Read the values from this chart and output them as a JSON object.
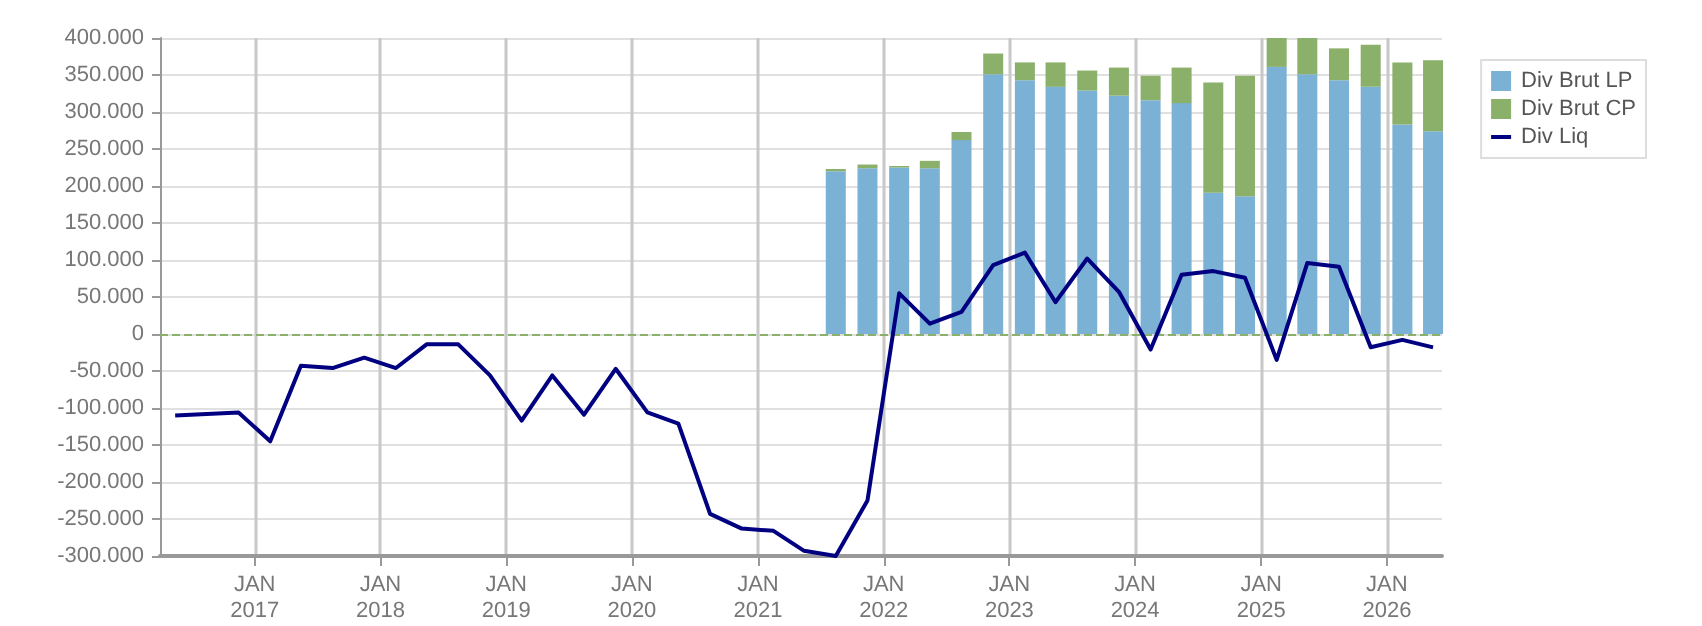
{
  "chart_data": {
    "type": "bar",
    "stacked": true,
    "grid": true,
    "legend": "right",
    "x": [
      "2016-05-15",
      "2016-08-15",
      "2016-11-15",
      "2017-02-15",
      "2017-05-15",
      "2017-08-15",
      "2017-11-15",
      "2018-02-15",
      "2018-05-15",
      "2018-08-15",
      "2018-11-15",
      "2019-02-15",
      "2019-05-15",
      "2019-08-15",
      "2019-11-15",
      "2020-02-15",
      "2020-05-15",
      "2020-08-15",
      "2020-11-15",
      "2021-02-15",
      "2021-05-15",
      "2021-08-15",
      "2021-11-15",
      "2022-02-15",
      "2022-05-15",
      "2022-08-15",
      "2022-11-15",
      "2023-02-15",
      "2023-05-15",
      "2023-08-15",
      "2023-11-15",
      "2024-02-15",
      "2024-05-15",
      "2024-08-15",
      "2024-11-15",
      "2025-02-15",
      "2025-05-15",
      "2025-08-15",
      "2025-11-15",
      "2026-02-15",
      "2026-05-15"
    ],
    "xlim": [
      "2016-04-01",
      "2026-06-10"
    ],
    "xticks": [
      {
        "value": "2017-01-01",
        "label": "JAN\n2017"
      },
      {
        "value": "2018-01-01",
        "label": "JAN\n2018"
      },
      {
        "value": "2019-01-01",
        "label": "JAN\n2019"
      },
      {
        "value": "2020-01-01",
        "label": "JAN\n2020"
      },
      {
        "value": "2021-01-01",
        "label": "JAN\n2021"
      },
      {
        "value": "2022-01-01",
        "label": "JAN\n2022"
      },
      {
        "value": "2023-01-01",
        "label": "JAN\n2023"
      },
      {
        "value": "2024-01-01",
        "label": "JAN\n2024"
      },
      {
        "value": "2025-01-01",
        "label": "JAN\n2025"
      },
      {
        "value": "2026-01-01",
        "label": "JAN\n2026"
      }
    ],
    "ylim": [
      -300000,
      400000
    ],
    "yticks": [
      {
        "value": -300000,
        "label": "-300.000"
      },
      {
        "value": -250000,
        "label": "-250.000"
      },
      {
        "value": -200000,
        "label": "-200.000"
      },
      {
        "value": -150000,
        "label": "-150.000"
      },
      {
        "value": -100000,
        "label": "-100.000"
      },
      {
        "value": -50000,
        "label": "-50.000"
      },
      {
        "value": 0,
        "label": "0"
      },
      {
        "value": 50000,
        "label": "50.000"
      },
      {
        "value": 100000,
        "label": "100.000"
      },
      {
        "value": 150000,
        "label": "150.000"
      },
      {
        "value": 200000,
        "label": "200.000"
      },
      {
        "value": 250000,
        "label": "250.000"
      },
      {
        "value": 300000,
        "label": "300.000"
      },
      {
        "value": 350000,
        "label": "350.000"
      },
      {
        "value": 400000,
        "label": "400.000"
      }
    ],
    "ref_lines": [
      {
        "axis": "y",
        "value": 0,
        "color": "#8ab06a",
        "line_style": "dashed"
      }
    ],
    "series": [
      {
        "name": "Div Brut LP",
        "color": "#7ab1d4",
        "values": [
          null,
          null,
          null,
          null,
          null,
          null,
          null,
          null,
          null,
          null,
          null,
          null,
          null,
          null,
          null,
          null,
          null,
          null,
          null,
          null,
          null,
          220000,
          224000,
          225000,
          224000,
          262000,
          351000,
          343000,
          334000,
          329000,
          322000,
          316000,
          312000,
          191000,
          186000,
          361000,
          351000,
          343000,
          334000,
          283000,
          274000
        ]
      },
      {
        "name": "Div Brut CP",
        "color": "#8ab06a",
        "values": [
          null,
          null,
          null,
          null,
          null,
          null,
          null,
          null,
          null,
          null,
          null,
          null,
          null,
          null,
          null,
          null,
          null,
          null,
          null,
          null,
          null,
          3000,
          5000,
          2000,
          10000,
          11000,
          28000,
          24000,
          33000,
          27000,
          38000,
          33000,
          48000,
          149000,
          163000,
          39000,
          49000,
          43000,
          57000,
          84000,
          96000
        ]
      },
      {
        "name": "Div Liq",
        "type": "line",
        "color": "#000080",
        "marker": "none",
        "values": [
          -110000,
          -108000,
          -106000,
          -145000,
          -43000,
          -46000,
          -32000,
          -46000,
          -14000,
          -14000,
          -56000,
          -117000,
          -56000,
          -109000,
          -47000,
          -106000,
          -121000,
          -243000,
          -263000,
          -266000,
          -293000,
          -300000,
          -225000,
          55000,
          14000,
          30000,
          93000,
          110000,
          43000,
          102000,
          57000,
          -21000,
          80000,
          85000,
          76000,
          -35000,
          96000,
          91000,
          -18000,
          -8000,
          -18000
        ]
      }
    ]
  }
}
